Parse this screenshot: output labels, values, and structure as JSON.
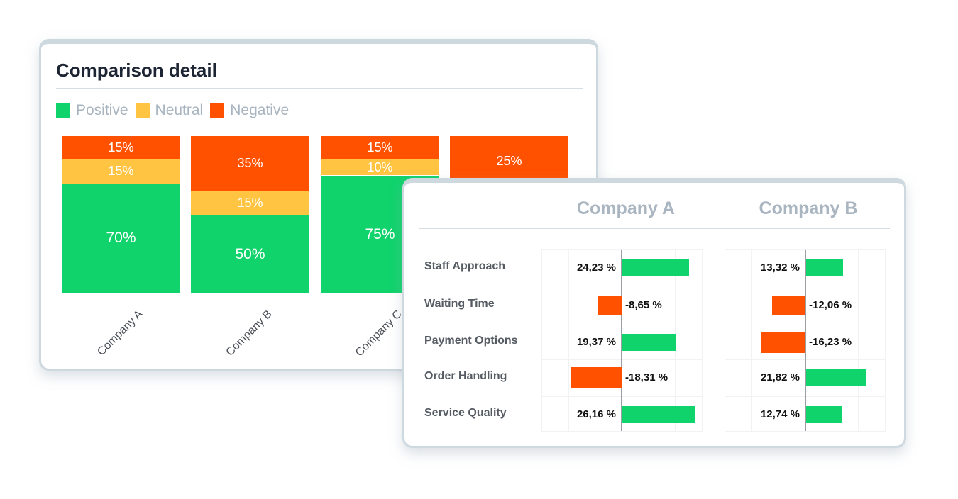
{
  "colors": {
    "positive": "#10d36c",
    "neutral": "#ffc442",
    "negative": "#ff5100"
  },
  "chart_data": [
    {
      "type": "bar",
      "stacked": true,
      "title": "Comparison detail",
      "legend": [
        "Positive",
        "Neutral",
        "Negative"
      ],
      "legend_placement": "top-left",
      "categories": [
        "Company A",
        "Company B",
        "Company C",
        ""
      ],
      "series": [
        {
          "name": "Positive",
          "values": [
            70,
            50,
            75,
            null
          ],
          "labels": [
            "70%",
            "50%",
            "75%",
            ""
          ]
        },
        {
          "name": "Neutral",
          "values": [
            15,
            15,
            10,
            null
          ],
          "labels": [
            "15%",
            "15%",
            "10%",
            ""
          ]
        },
        {
          "name": "Negative",
          "values": [
            15,
            35,
            15,
            25
          ],
          "labels": [
            "15%",
            "35%",
            "15%",
            "25%"
          ]
        }
      ]
    },
    {
      "type": "bar",
      "orientation": "horizontal",
      "panels": [
        "Company A",
        "Company B"
      ],
      "categories": [
        "Staff Approach",
        "Waiting Time",
        "Payment Options",
        "Order Handling",
        "Service Quality"
      ],
      "series": [
        {
          "name": "Company A",
          "values": [
            24.23,
            -8.65,
            19.37,
            -18.31,
            26.16
          ],
          "labels": [
            "24,23 %",
            "-8,65 %",
            "19,37 %",
            "-18,31 %",
            "26,16 %"
          ]
        },
        {
          "name": "Company B",
          "values": [
            13.32,
            -12.06,
            -16.23,
            21.82,
            12.74
          ],
          "labels": [
            "13,32 %",
            "-12,06 %",
            "-16,23 %",
            "21,82 %",
            "12,74 %"
          ]
        }
      ]
    }
  ]
}
